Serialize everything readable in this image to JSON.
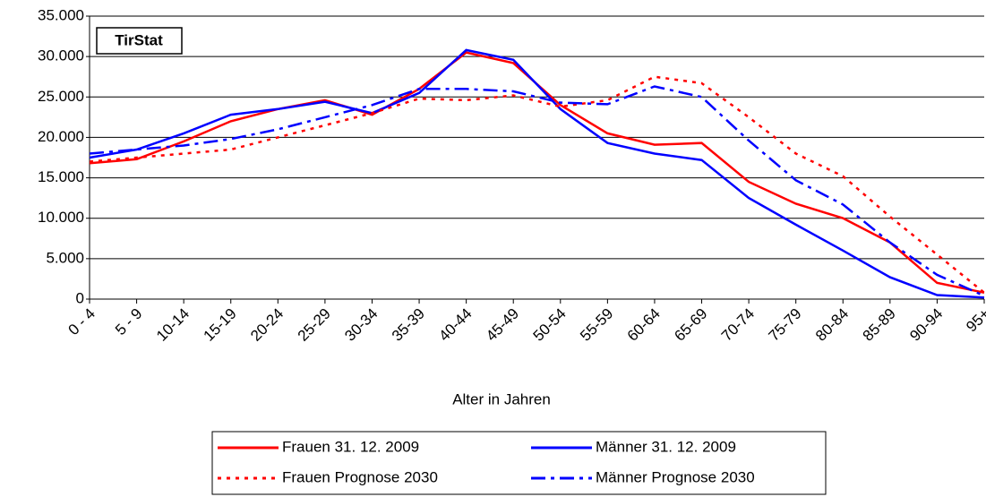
{
  "chart_data": {
    "type": "line",
    "annotation": "TirStat",
    "x_label": "Alter in Jahren",
    "categories": [
      "0 - 4",
      "5 - 9",
      "10-14",
      "15-19",
      "20-24",
      "25-29",
      "30-34",
      "35-39",
      "40-44",
      "45-49",
      "50-54",
      "55-59",
      "60-64",
      "65-69",
      "70-74",
      "75-79",
      "80-84",
      "85-89",
      "90-94",
      "95+"
    ],
    "series": [
      {
        "name": "Frauen 31. 12. 2009",
        "color": "#ff0000",
        "dash": "solid",
        "values": [
          16800,
          17300,
          19500,
          22000,
          23500,
          24600,
          22800,
          26000,
          30500,
          29200,
          24000,
          20500,
          19100,
          19300,
          14500,
          11800,
          10000,
          7000,
          2000,
          800
        ]
      },
      {
        "name": "Männer 31. 12. 2009",
        "color": "#0000ff",
        "dash": "solid",
        "values": [
          17500,
          18500,
          20500,
          22800,
          23500,
          24400,
          23000,
          25500,
          30800,
          29600,
          23500,
          19300,
          18000,
          17200,
          12500,
          9200,
          6000,
          2700,
          500,
          200
        ]
      },
      {
        "name": "Frauen Prognose 2030",
        "color": "#ff0000",
        "dash": "dot",
        "values": [
          17000,
          17500,
          18000,
          18500,
          20000,
          21500,
          23000,
          24800,
          24600,
          25200,
          23800,
          24600,
          27500,
          26700,
          22500,
          18000,
          15200,
          10200,
          5500,
          800
        ]
      },
      {
        "name": "Männer Prognose 2030",
        "color": "#0000ff",
        "dash": "dashdot",
        "values": [
          18000,
          18500,
          19000,
          19800,
          21000,
          22500,
          24000,
          26000,
          26000,
          25700,
          24300,
          24100,
          26300,
          25000,
          19600,
          14700,
          11700,
          7000,
          3000,
          400
        ]
      }
    ],
    "ylim": [
      0,
      35000
    ],
    "yticks": [
      0,
      {
        "value": 5000,
        "label": "5.000"
      },
      {
        "value": 10000,
        "label": "10.000"
      },
      {
        "value": 15000,
        "label": "15.000"
      },
      {
        "value": 20000,
        "label": "20.000"
      },
      {
        "value": 25000,
        "label": "25.000"
      },
      {
        "value": 30000,
        "label": "30.000"
      },
      {
        "value": 35000,
        "label": "35.000"
      }
    ],
    "grid": true
  }
}
